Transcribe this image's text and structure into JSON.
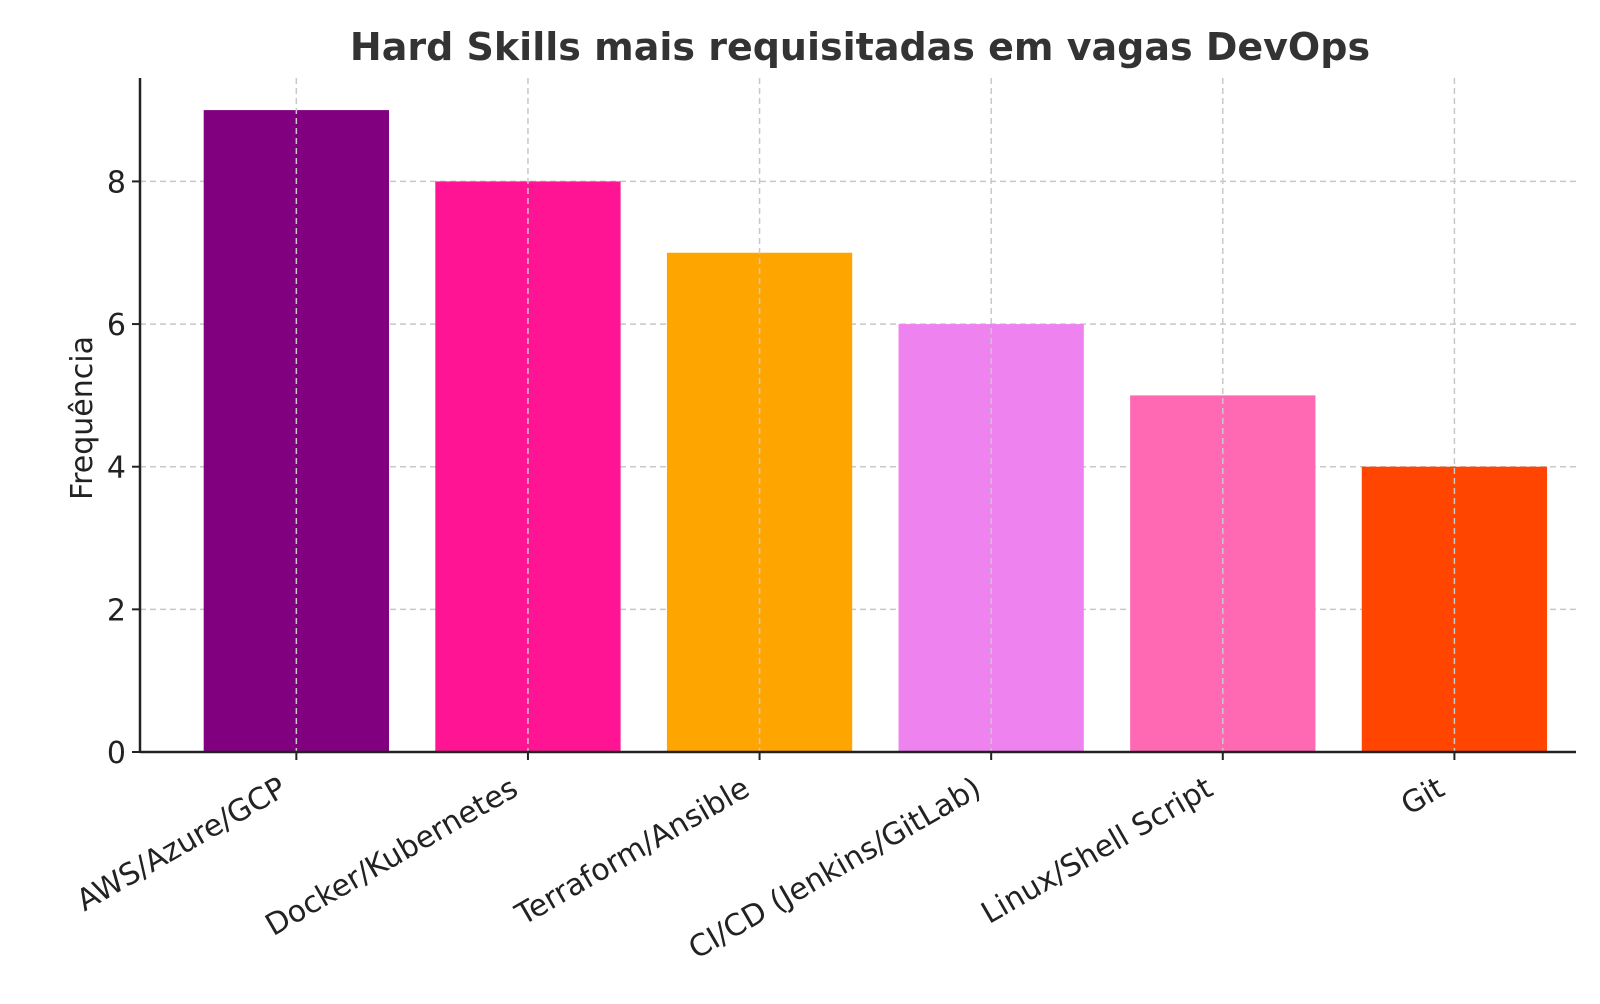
{
  "chart_data": {
    "type": "bar",
    "title": "Hard Skills mais requisitadas em vagas DevOps",
    "xlabel": "",
    "ylabel": "Frequência",
    "categories": [
      "AWS/Azure/GCP",
      "Docker/Kubernetes",
      "Terraform/Ansible",
      "CI/CD (Jenkins/GitLab)",
      "Linux/Shell Script",
      "Git"
    ],
    "values": [
      9,
      8,
      7,
      6,
      5,
      4
    ],
    "colors": [
      "#800080",
      "#ff1493",
      "#ffa500",
      "#ee82ee",
      "#ff69b4",
      "#ff4500"
    ],
    "ylim": [
      0,
      9.45
    ],
    "yticks": [
      0,
      2,
      4,
      6,
      8
    ],
    "grid": true,
    "grid_style": "dashed"
  }
}
